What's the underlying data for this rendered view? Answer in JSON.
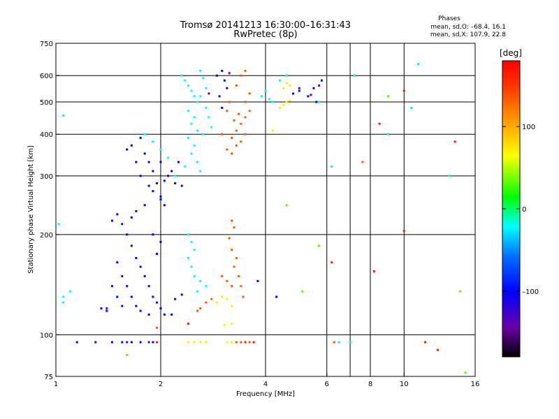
{
  "chart_data": {
    "type": "scatter",
    "title": "Tromsø 20141213 16:30:00–16:31:43",
    "subtitle": "RwPretec (8p)",
    "xlabel": "Frequency [MHz]",
    "ylabel": "Stationary phase Virtual Height [km]",
    "x_scale": "log",
    "y_scale": "log",
    "xlim": [
      1,
      16
    ],
    "ylim": [
      75,
      750
    ],
    "x_ticks": [
      1,
      2,
      4,
      6,
      8,
      10,
      16
    ],
    "x_tick_labels": [
      "1",
      "2",
      "4",
      "6",
      "8",
      "10",
      "16"
    ],
    "x_grid": [
      2,
      4,
      6,
      7,
      8,
      10
    ],
    "y_ticks": [
      75,
      100,
      200,
      300,
      400,
      500,
      600,
      750
    ],
    "y_tick_labels": [
      "75",
      "100",
      "200",
      "300",
      "400",
      "500",
      "600",
      "750"
    ],
    "y_grid": [
      100,
      200,
      300,
      400,
      500,
      600
    ],
    "grid": true,
    "legend": {
      "title": "Phases",
      "lines": [
        "mean, sd,O: –68.4, 16.1",
        "mean, sd,X: 107.9, 22.8"
      ],
      "placement": "top-right"
    },
    "colorbar": {
      "label": "[deg]",
      "min": -180,
      "max": 180,
      "ticks": [
        100,
        0,
        -100
      ],
      "tick_labels": [
        "100",
        "0",
        "–100"
      ]
    },
    "series": [
      {
        "phase_deg": -20,
        "points": [
          {
            "x": 2.3,
            "y": 600
          },
          {
            "x": 2.35,
            "y": 580
          },
          {
            "x": 2.4,
            "y": 560
          },
          {
            "x": 2.45,
            "y": 540
          },
          {
            "x": 2.5,
            "y": 520
          },
          {
            "x": 2.55,
            "y": 500
          },
          {
            "x": 2.4,
            "y": 470
          },
          {
            "x": 2.5,
            "y": 450
          },
          {
            "x": 2.45,
            "y": 430
          },
          {
            "x": 2.55,
            "y": 410
          },
          {
            "x": 2.4,
            "y": 390
          },
          {
            "x": 2.5,
            "y": 370
          },
          {
            "x": 2.45,
            "y": 350
          },
          {
            "x": 2.6,
            "y": 620
          },
          {
            "x": 2.65,
            "y": 590
          },
          {
            "x": 2.7,
            "y": 550
          },
          {
            "x": 2.6,
            "y": 520
          },
          {
            "x": 2.7,
            "y": 480
          },
          {
            "x": 2.75,
            "y": 450
          },
          {
            "x": 2.8,
            "y": 420
          },
          {
            "x": 2.65,
            "y": 400
          },
          {
            "x": 2.55,
            "y": 330
          },
          {
            "x": 2.6,
            "y": 310
          },
          {
            "x": 2.35,
            "y": 320
          },
          {
            "x": 2.1,
            "y": 340
          },
          {
            "x": 2.0,
            "y": 360
          },
          {
            "x": 1.9,
            "y": 380
          },
          {
            "x": 1.8,
            "y": 400
          },
          {
            "x": 2.2,
            "y": 300
          },
          {
            "x": 3.9,
            "y": 520
          },
          {
            "x": 4.0,
            "y": 540
          },
          {
            "x": 4.1,
            "y": 510
          },
          {
            "x": 4.2,
            "y": 500
          },
          {
            "x": 4.4,
            "y": 580
          },
          {
            "x": 4.6,
            "y": 600
          },
          {
            "x": 2.4,
            "y": 200
          },
          {
            "x": 2.45,
            "y": 190
          },
          {
            "x": 2.5,
            "y": 180
          },
          {
            "x": 2.4,
            "y": 170
          },
          {
            "x": 2.45,
            "y": 160
          },
          {
            "x": 2.5,
            "y": 150
          },
          {
            "x": 2.6,
            "y": 145
          },
          {
            "x": 2.55,
            "y": 135
          },
          {
            "x": 2.7,
            "y": 140
          },
          {
            "x": 1.05,
            "y": 130
          },
          {
            "x": 1.05,
            "y": 125
          },
          {
            "x": 1.1,
            "y": 135
          },
          {
            "x": 1.02,
            "y": 215
          }
        ]
      },
      {
        "phase_deg": -100,
        "points": [
          {
            "x": 1.85,
            "y": 280
          },
          {
            "x": 1.95,
            "y": 285
          },
          {
            "x": 2.05,
            "y": 290
          },
          {
            "x": 2.1,
            "y": 300
          },
          {
            "x": 2.15,
            "y": 310
          },
          {
            "x": 2.25,
            "y": 330
          },
          {
            "x": 1.9,
            "y": 310
          },
          {
            "x": 2.0,
            "y": 330
          },
          {
            "x": 1.85,
            "y": 330
          },
          {
            "x": 1.8,
            "y": 350
          },
          {
            "x": 1.75,
            "y": 300
          },
          {
            "x": 2.2,
            "y": 285
          },
          {
            "x": 2.3,
            "y": 280
          },
          {
            "x": 1.9,
            "y": 270
          },
          {
            "x": 2.0,
            "y": 260
          },
          {
            "x": 1.7,
            "y": 330
          },
          {
            "x": 1.6,
            "y": 360
          },
          {
            "x": 1.65,
            "y": 370
          },
          {
            "x": 1.75,
            "y": 390
          },
          {
            "x": 1.65,
            "y": 225
          },
          {
            "x": 1.7,
            "y": 235
          },
          {
            "x": 1.8,
            "y": 245
          },
          {
            "x": 1.55,
            "y": 215
          },
          {
            "x": 1.45,
            "y": 220
          },
          {
            "x": 1.5,
            "y": 230
          },
          {
            "x": 2.0,
            "y": 255
          },
          {
            "x": 2.05,
            "y": 245
          },
          {
            "x": 1.6,
            "y": 200
          },
          {
            "x": 1.65,
            "y": 185
          },
          {
            "x": 1.7,
            "y": 170
          },
          {
            "x": 1.75,
            "y": 160
          },
          {
            "x": 1.8,
            "y": 150
          },
          {
            "x": 1.85,
            "y": 140
          },
          {
            "x": 1.9,
            "y": 130
          },
          {
            "x": 1.95,
            "y": 125
          },
          {
            "x": 2.0,
            "y": 120
          },
          {
            "x": 1.5,
            "y": 165
          },
          {
            "x": 1.55,
            "y": 150
          },
          {
            "x": 1.6,
            "y": 140
          },
          {
            "x": 1.65,
            "y": 130
          },
          {
            "x": 1.7,
            "y": 122
          },
          {
            "x": 1.75,
            "y": 118
          },
          {
            "x": 1.45,
            "y": 140
          },
          {
            "x": 1.5,
            "y": 130
          },
          {
            "x": 1.55,
            "y": 122
          },
          {
            "x": 1.4,
            "y": 118
          },
          {
            "x": 1.35,
            "y": 120
          },
          {
            "x": 1.85,
            "y": 115
          },
          {
            "x": 2.05,
            "y": 115
          },
          {
            "x": 2.15,
            "y": 115
          },
          {
            "x": 2.2,
            "y": 128
          },
          {
            "x": 2.3,
            "y": 132
          },
          {
            "x": 1.95,
            "y": 175
          },
          {
            "x": 2.0,
            "y": 190
          },
          {
            "x": 1.9,
            "y": 200
          },
          {
            "x": 3.0,
            "y": 620
          },
          {
            "x": 3.05,
            "y": 580
          },
          {
            "x": 3.1,
            "y": 550
          },
          {
            "x": 2.9,
            "y": 600
          },
          {
            "x": 2.95,
            "y": 520
          },
          {
            "x": 3.0,
            "y": 480
          },
          {
            "x": 4.8,
            "y": 530
          },
          {
            "x": 5.0,
            "y": 540
          },
          {
            "x": 5.3,
            "y": 520
          },
          {
            "x": 5.6,
            "y": 500
          },
          {
            "x": 5.5,
            "y": 550
          },
          {
            "x": 5.8,
            "y": 580
          },
          {
            "x": 1.3,
            "y": 95
          },
          {
            "x": 1.45,
            "y": 95
          },
          {
            "x": 1.55,
            "y": 95
          },
          {
            "x": 1.65,
            "y": 95
          },
          {
            "x": 1.75,
            "y": 95
          },
          {
            "x": 1.9,
            "y": 95
          },
          {
            "x": 1.15,
            "y": 95
          },
          {
            "x": 4.3,
            "y": 130
          },
          {
            "x": 3.8,
            "y": 145
          }
        ]
      },
      {
        "phase_deg": -140,
        "points": [
          {
            "x": 5.0,
            "y": 550
          },
          {
            "x": 5.4,
            "y": 525
          },
          {
            "x": 5.7,
            "y": 560
          },
          {
            "x": 3.15,
            "y": 610
          },
          {
            "x": 2.75,
            "y": 530
          },
          {
            "x": 1.6,
            "y": 95
          },
          {
            "x": 1.85,
            "y": 95
          },
          {
            "x": 1.4,
            "y": 120
          }
        ]
      },
      {
        "phase_deg": 135,
        "points": [
          {
            "x": 3.1,
            "y": 360
          },
          {
            "x": 3.2,
            "y": 350
          },
          {
            "x": 3.3,
            "y": 370
          },
          {
            "x": 3.4,
            "y": 380
          },
          {
            "x": 3.5,
            "y": 400
          },
          {
            "x": 3.2,
            "y": 390
          },
          {
            "x": 3.3,
            "y": 410
          },
          {
            "x": 3.4,
            "y": 430
          },
          {
            "x": 3.5,
            "y": 450
          },
          {
            "x": 3.6,
            "y": 470
          },
          {
            "x": 3.25,
            "y": 440
          },
          {
            "x": 3.35,
            "y": 460
          },
          {
            "x": 3.5,
            "y": 500
          },
          {
            "x": 3.6,
            "y": 530
          },
          {
            "x": 3.1,
            "y": 470
          },
          {
            "x": 3.15,
            "y": 500
          },
          {
            "x": 3.3,
            "y": 560
          },
          {
            "x": 3.4,
            "y": 600
          },
          {
            "x": 3.5,
            "y": 620
          },
          {
            "x": 3.0,
            "y": 400
          },
          {
            "x": 3.2,
            "y": 220
          },
          {
            "x": 3.25,
            "y": 210
          },
          {
            "x": 3.15,
            "y": 195
          },
          {
            "x": 3.2,
            "y": 180
          },
          {
            "x": 3.3,
            "y": 170
          },
          {
            "x": 3.25,
            "y": 160
          },
          {
            "x": 3.35,
            "y": 150
          },
          {
            "x": 3.2,
            "y": 140
          },
          {
            "x": 3.1,
            "y": 145
          },
          {
            "x": 3.0,
            "y": 150
          },
          {
            "x": 3.4,
            "y": 140
          },
          {
            "x": 3.45,
            "y": 130
          },
          {
            "x": 2.6,
            "y": 120
          },
          {
            "x": 2.7,
            "y": 125
          },
          {
            "x": 2.8,
            "y": 128
          },
          {
            "x": 2.55,
            "y": 118
          },
          {
            "x": 1.95,
            "y": 105
          },
          {
            "x": 3.3,
            "y": 95
          },
          {
            "x": 3.4,
            "y": 95
          },
          {
            "x": 3.6,
            "y": 95
          },
          {
            "x": 6.3,
            "y": 95
          },
          {
            "x": 7.6,
            "y": 330
          }
        ]
      },
      {
        "phase_deg": 70,
        "points": [
          {
            "x": 2.9,
            "y": 125
          },
          {
            "x": 3.0,
            "y": 130
          },
          {
            "x": 3.1,
            "y": 128
          },
          {
            "x": 3.2,
            "y": 122
          },
          {
            "x": 2.4,
            "y": 95
          },
          {
            "x": 2.5,
            "y": 95
          },
          {
            "x": 2.6,
            "y": 95
          },
          {
            "x": 2.7,
            "y": 95
          },
          {
            "x": 3.1,
            "y": 95
          },
          {
            "x": 3.2,
            "y": 95
          },
          {
            "x": 3.05,
            "y": 107
          },
          {
            "x": 3.2,
            "y": 108
          },
          {
            "x": 4.5,
            "y": 550
          },
          {
            "x": 4.6,
            "y": 570
          },
          {
            "x": 4.7,
            "y": 560
          },
          {
            "x": 4.5,
            "y": 490
          },
          {
            "x": 4.6,
            "y": 500
          },
          {
            "x": 4.7,
            "y": 505
          },
          {
            "x": 4.4,
            "y": 480
          },
          {
            "x": 4.2,
            "y": 410
          }
        ]
      },
      {
        "phase_deg": 165,
        "points": [
          {
            "x": 1.95,
            "y": 95
          },
          {
            "x": 2.4,
            "y": 108
          },
          {
            "x": 3.5,
            "y": 95
          },
          {
            "x": 3.7,
            "y": 95
          },
          {
            "x": 8.5,
            "y": 430
          },
          {
            "x": 10.0,
            "y": 205
          },
          {
            "x": 10.0,
            "y": 540
          },
          {
            "x": 11.5,
            "y": 95
          },
          {
            "x": 14.0,
            "y": 380
          },
          {
            "x": 6.2,
            "y": 165
          },
          {
            "x": 8.2,
            "y": 155
          },
          {
            "x": 12.5,
            "y": 90
          }
        ]
      },
      {
        "phase_deg": 30,
        "points": [
          {
            "x": 1.6,
            "y": 87
          },
          {
            "x": 9.0,
            "y": 520
          },
          {
            "x": 5.7,
            "y": 185
          },
          {
            "x": 14.5,
            "y": 135
          },
          {
            "x": 4.6,
            "y": 245
          },
          {
            "x": 5.1,
            "y": 135
          },
          {
            "x": 15.0,
            "y": 77
          }
        ]
      },
      {
        "phase_deg": -10,
        "points": [
          {
            "x": 6.5,
            "y": 95
          },
          {
            "x": 6.2,
            "y": 320
          },
          {
            "x": 7.2,
            "y": 600
          },
          {
            "x": 10.5,
            "y": 480
          },
          {
            "x": 5.7,
            "y": 500
          },
          {
            "x": 7.0,
            "y": 95
          },
          {
            "x": 9.0,
            "y": 400
          },
          {
            "x": 13.5,
            "y": 300
          },
          {
            "x": 11.0,
            "y": 650
          },
          {
            "x": 1.05,
            "y": 455
          }
        ]
      }
    ]
  }
}
